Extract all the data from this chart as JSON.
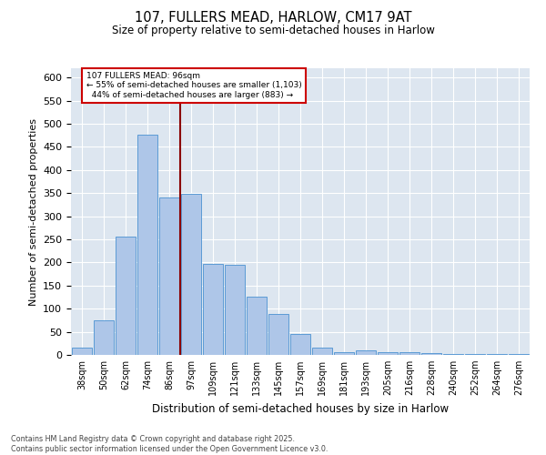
{
  "title1": "107, FULLERS MEAD, HARLOW, CM17 9AT",
  "title2": "Size of property relative to semi-detached houses in Harlow",
  "xlabel": "Distribution of semi-detached houses by size in Harlow",
  "ylabel": "Number of semi-detached properties",
  "categories": [
    "38sqm",
    "50sqm",
    "62sqm",
    "74sqm",
    "86sqm",
    "97sqm",
    "109sqm",
    "121sqm",
    "133sqm",
    "145sqm",
    "157sqm",
    "169sqm",
    "181sqm",
    "193sqm",
    "205sqm",
    "216sqm",
    "228sqm",
    "240sqm",
    "252sqm",
    "264sqm",
    "276sqm"
  ],
  "bar_heights": [
    15,
    74,
    255,
    477,
    340,
    348,
    196,
    195,
    125,
    88,
    46,
    16,
    6,
    10,
    6,
    5,
    3,
    1,
    1,
    1,
    1
  ],
  "annotation_text": "107 FULLERS MEAD: 96sqm\n← 55% of semi-detached houses are smaller (1,103)\n  44% of semi-detached houses are larger (883) →",
  "footer": "Contains HM Land Registry data © Crown copyright and database right 2025.\nContains public sector information licensed under the Open Government Licence v3.0.",
  "bar_color": "#aec6e8",
  "bar_edge_color": "#5b9bd5",
  "line_color": "#8b0000",
  "box_edge_color": "#cc0000",
  "background_color": "#dde6f0",
  "ylim": [
    0,
    620
  ],
  "yticks": [
    0,
    50,
    100,
    150,
    200,
    250,
    300,
    350,
    400,
    450,
    500,
    550,
    600
  ]
}
